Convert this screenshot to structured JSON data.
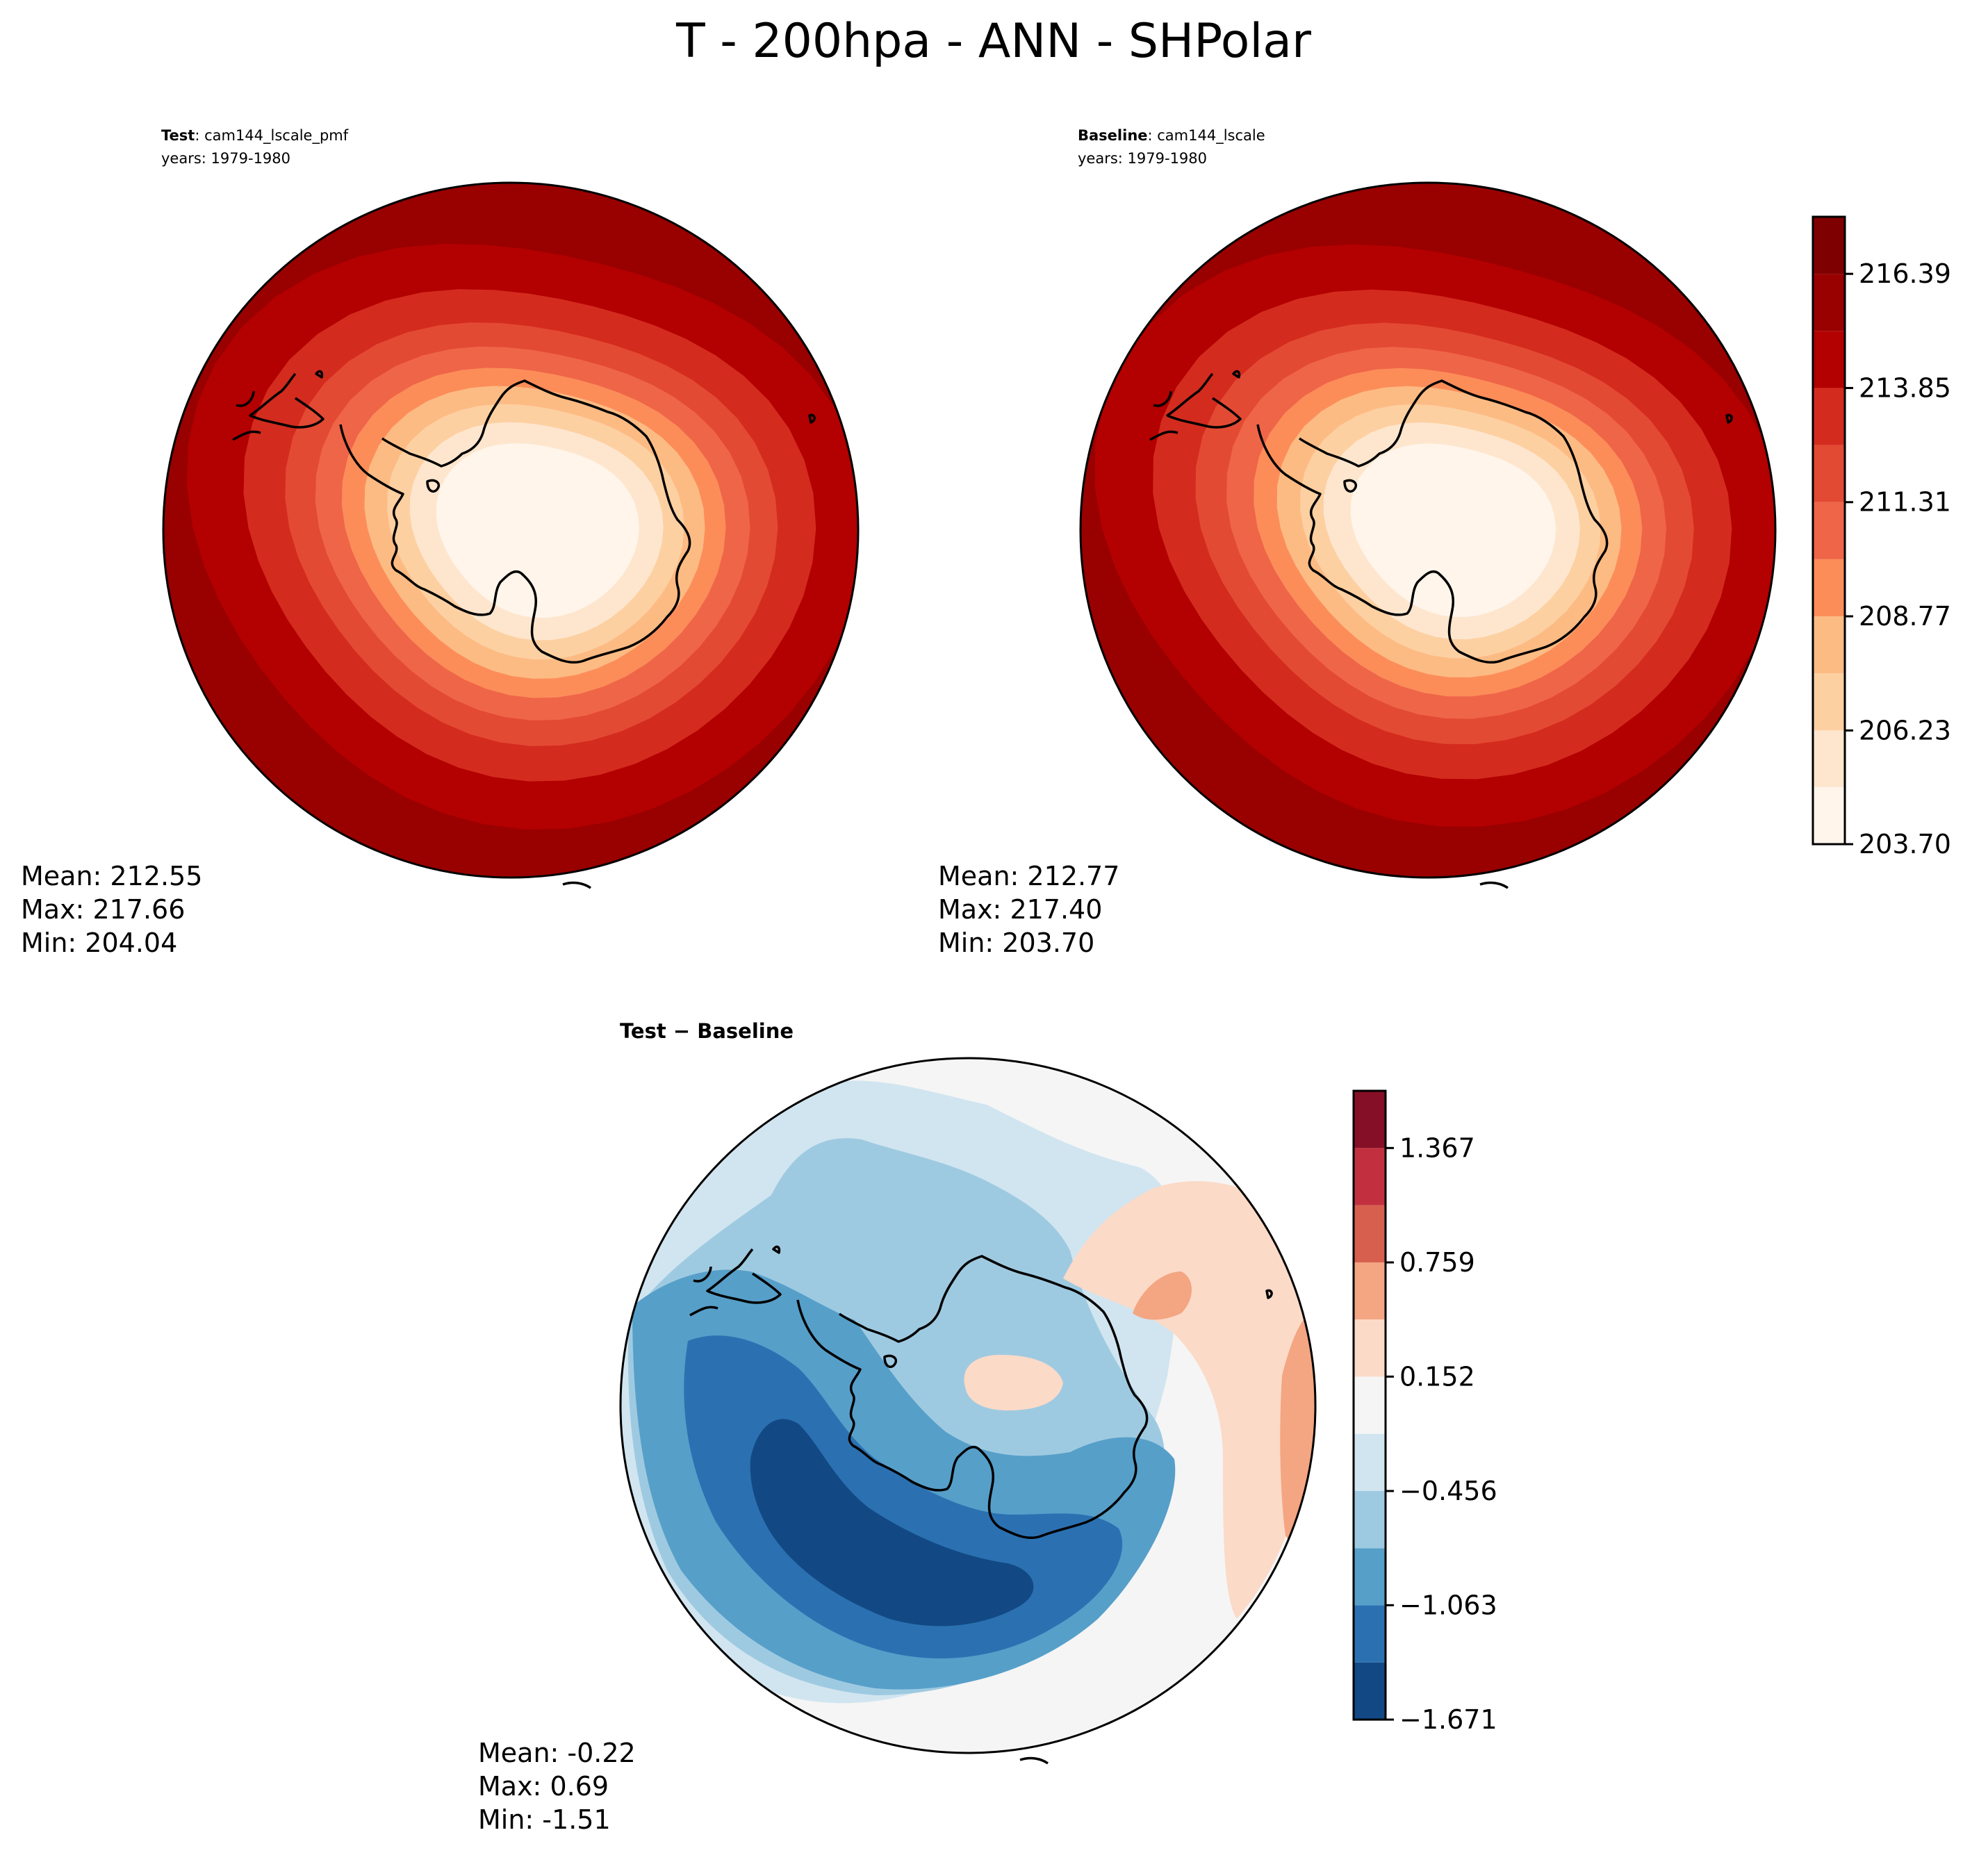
{
  "figure": {
    "title": "T - 200hpa - ANN - SHPolar"
  },
  "chart_data": [
    {
      "type": "polar-contour-map",
      "name": "test",
      "label_bold": "Test",
      "label_rest": ": cam144_lscale_pmf",
      "years": "years: 1979-1980",
      "stats": {
        "mean": "Mean: 212.55",
        "max": "Max: 217.66",
        "min": "Min: 204.04"
      },
      "field_range": [
        204.04,
        217.66
      ],
      "fill_levels": [
        0,
        1,
        2,
        3,
        4,
        5,
        6,
        7,
        8,
        9,
        10
      ]
    },
    {
      "type": "polar-contour-map",
      "name": "baseline",
      "label_bold": "Baseline",
      "label_rest": ": cam144_lscale",
      "years": "years: 1979-1980",
      "stats": {
        "mean": "Mean: 212.77",
        "max": "Max: 217.40",
        "min": "Min: 203.70"
      },
      "field_range": [
        203.7,
        217.4
      ],
      "fill_levels": [
        0,
        1,
        2,
        3,
        4,
        5,
        6,
        7,
        8,
        9,
        10
      ]
    },
    {
      "type": "polar-contour-map",
      "name": "difference",
      "label_bold": "Test",
      "label_rest": " − Baseline",
      "stats": {
        "mean": "Mean: -0.22",
        "max": "Max:  0.69",
        "min": "Min: -1.51"
      },
      "field_range": [
        -1.51,
        0.69
      ]
    }
  ],
  "colorbars": {
    "main": {
      "levels": [
        203.7,
        204.97,
        206.23,
        207.5,
        208.77,
        210.04,
        211.31,
        212.58,
        213.85,
        215.12,
        216.39,
        217.66
      ],
      "tick_labels": [
        "203.70",
        "206.23",
        "208.77",
        "211.31",
        "213.85",
        "216.39"
      ],
      "colors": [
        "#fff5eb",
        "#fee6ce",
        "#fdd0a2",
        "#fdbb84",
        "#fc8d59",
        "#ef6548",
        "#e34a33",
        "#d42b1f",
        "#b30000",
        "#990000",
        "#7f0000"
      ]
    },
    "diff": {
      "levels": [
        -1.671,
        -1.367,
        -1.063,
        -0.76,
        -0.456,
        -0.152,
        0.152,
        0.456,
        0.759,
        1.063,
        1.367,
        1.671
      ],
      "tick_labels": [
        "−1.671",
        "−1.063",
        "−0.456",
        "0.152",
        "0.759",
        "1.367"
      ],
      "colors": [
        "#124984",
        "#2b71b2",
        "#569fc9",
        "#9ecae1",
        "#d1e5f0",
        "#f5f5f5",
        "#fbdac8",
        "#f4a582",
        "#d6604d",
        "#c2303f",
        "#850f26"
      ]
    }
  }
}
